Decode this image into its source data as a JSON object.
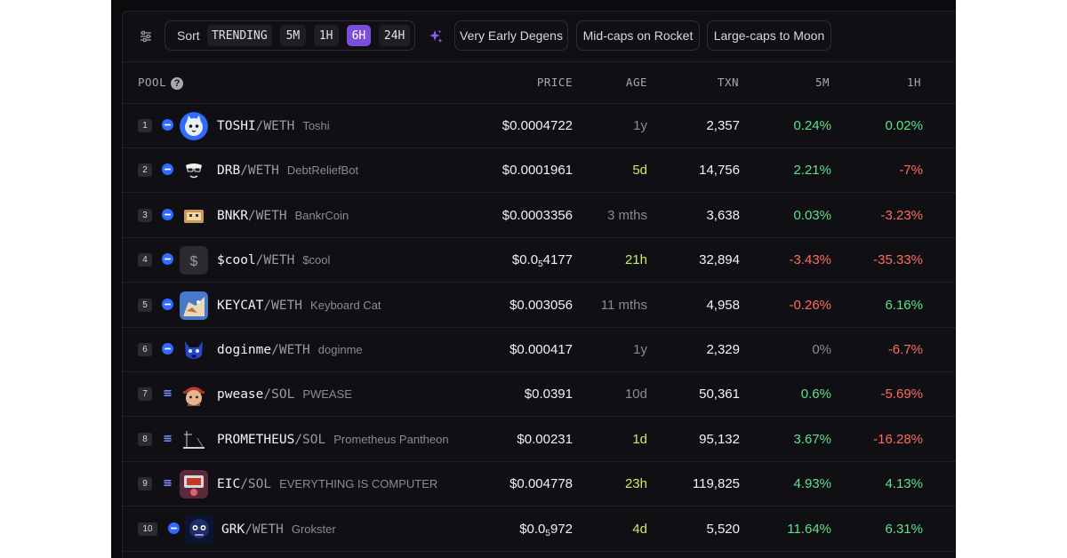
{
  "toolbar": {
    "sort_label": "Sort",
    "timeframes": [
      "TRENDING",
      "5M",
      "1H",
      "6H",
      "24H"
    ],
    "active_timeframe": "6H",
    "presets": [
      "Very Early Degens",
      "Mid-caps on Rocket",
      "Large-caps to Moon"
    ]
  },
  "columns": {
    "pool": "POOL",
    "price": "PRICE",
    "age": "AGE",
    "txn": "TXN",
    "m5": "5M",
    "h1": "1H"
  },
  "colors": {
    "accent": "#7b4fd8",
    "positive": "#5fe08a",
    "negative": "#ff6b5e",
    "recent_age": "#c8ec6e",
    "chain_base": "#2f6bff"
  },
  "rows": [
    {
      "rank": "1",
      "chain": "base",
      "avatar": "toshi-cat-avatar",
      "base": "TOSHI",
      "quote": "/WETH",
      "name": "Toshi",
      "price": "$0.0004722",
      "price_sub": "",
      "price_rest": "",
      "age": "1y",
      "age_style": "old",
      "txn": "2,357",
      "m5": "0.24%",
      "m5_dir": "pos",
      "h1": "0.02%",
      "h1_dir": "pos"
    },
    {
      "rank": "2",
      "chain": "base",
      "avatar": "debt-relief-bot-avatar",
      "base": "DRB",
      "quote": "/WETH",
      "name": "DebtReliefBot",
      "price": "$0.0001961",
      "price_sub": "",
      "price_rest": "",
      "age": "5d",
      "age_style": "recent",
      "txn": "14,756",
      "m5": "2.21%",
      "m5_dir": "pos",
      "h1": "-7%",
      "h1_dir": "neg"
    },
    {
      "rank": "3",
      "chain": "base",
      "avatar": "bankr-coin-avatar",
      "base": "BNKR",
      "quote": "/WETH",
      "name": "BankrCoin",
      "price": "$0.0003356",
      "price_sub": "",
      "price_rest": "",
      "age": "3 mths",
      "age_style": "old",
      "txn": "3,638",
      "m5": "0.03%",
      "m5_dir": "pos",
      "h1": "-3.23%",
      "h1_dir": "neg"
    },
    {
      "rank": "4",
      "chain": "base",
      "avatar": "dollar-sign-avatar",
      "base": "$cool",
      "quote": "/WETH",
      "name": "$cool",
      "price": "$0.0",
      "price_sub": "5",
      "price_rest": "4177",
      "age": "21h",
      "age_style": "recent",
      "txn": "32,894",
      "m5": "-3.43%",
      "m5_dir": "neg",
      "h1": "-35.33%",
      "h1_dir": "neg"
    },
    {
      "rank": "5",
      "chain": "base",
      "avatar": "keyboard-cat-avatar",
      "base": "KEYCAT",
      "quote": "/WETH",
      "name": "Keyboard Cat",
      "price": "$0.003056",
      "price_sub": "",
      "price_rest": "",
      "age": "11 mths",
      "age_style": "old",
      "txn": "4,958",
      "m5": "-0.26%",
      "m5_dir": "neg",
      "h1": "6.16%",
      "h1_dir": "pos"
    },
    {
      "rank": "6",
      "chain": "base",
      "avatar": "doginme-avatar",
      "base": "doginme",
      "quote": "/WETH",
      "name": "doginme",
      "price": "$0.000417",
      "price_sub": "",
      "price_rest": "",
      "age": "1y",
      "age_style": "old",
      "txn": "2,329",
      "m5": "0%",
      "m5_dir": "zero",
      "h1": "-6.7%",
      "h1_dir": "neg"
    },
    {
      "rank": "7",
      "chain": "solana",
      "avatar": "pwease-avatar",
      "base": "pwease",
      "quote": "/SOL",
      "name": "PWEASE",
      "price": "$0.0391",
      "price_sub": "",
      "price_rest": "",
      "age": "10d",
      "age_style": "old",
      "txn": "50,361",
      "m5": "0.6%",
      "m5_dir": "pos",
      "h1": "-5.69%",
      "h1_dir": "neg"
    },
    {
      "rank": "8",
      "chain": "solana",
      "avatar": "prometheus-avatar",
      "base": "PROMETHEUS",
      "quote": "/SOL",
      "name": "Prometheus Pantheon",
      "price": "$0.00231",
      "price_sub": "",
      "price_rest": "",
      "age": "1d",
      "age_style": "recent",
      "txn": "95,132",
      "m5": "3.67%",
      "m5_dir": "pos",
      "h1": "-16.28%",
      "h1_dir": "neg"
    },
    {
      "rank": "9",
      "chain": "solana",
      "avatar": "everything-is-computer-avatar",
      "base": "EIC",
      "quote": "/SOL",
      "name": "EVERYTHING IS COMPUTER",
      "price": "$0.004778",
      "price_sub": "",
      "price_rest": "",
      "age": "23h",
      "age_style": "recent",
      "txn": "119,825",
      "m5": "4.93%",
      "m5_dir": "pos",
      "h1": "4.13%",
      "h1_dir": "pos"
    },
    {
      "rank": "10",
      "chain": "base",
      "avatar": "grokster-avatar",
      "base": "GRK",
      "quote": "/WETH",
      "name": "Grokster",
      "price": "$0.0",
      "price_sub": "5",
      "price_rest": "972",
      "age": "4d",
      "age_style": "recent",
      "txn": "5,520",
      "m5": "11.64%",
      "m5_dir": "pos",
      "h1": "6.31%",
      "h1_dir": "pos"
    }
  ]
}
